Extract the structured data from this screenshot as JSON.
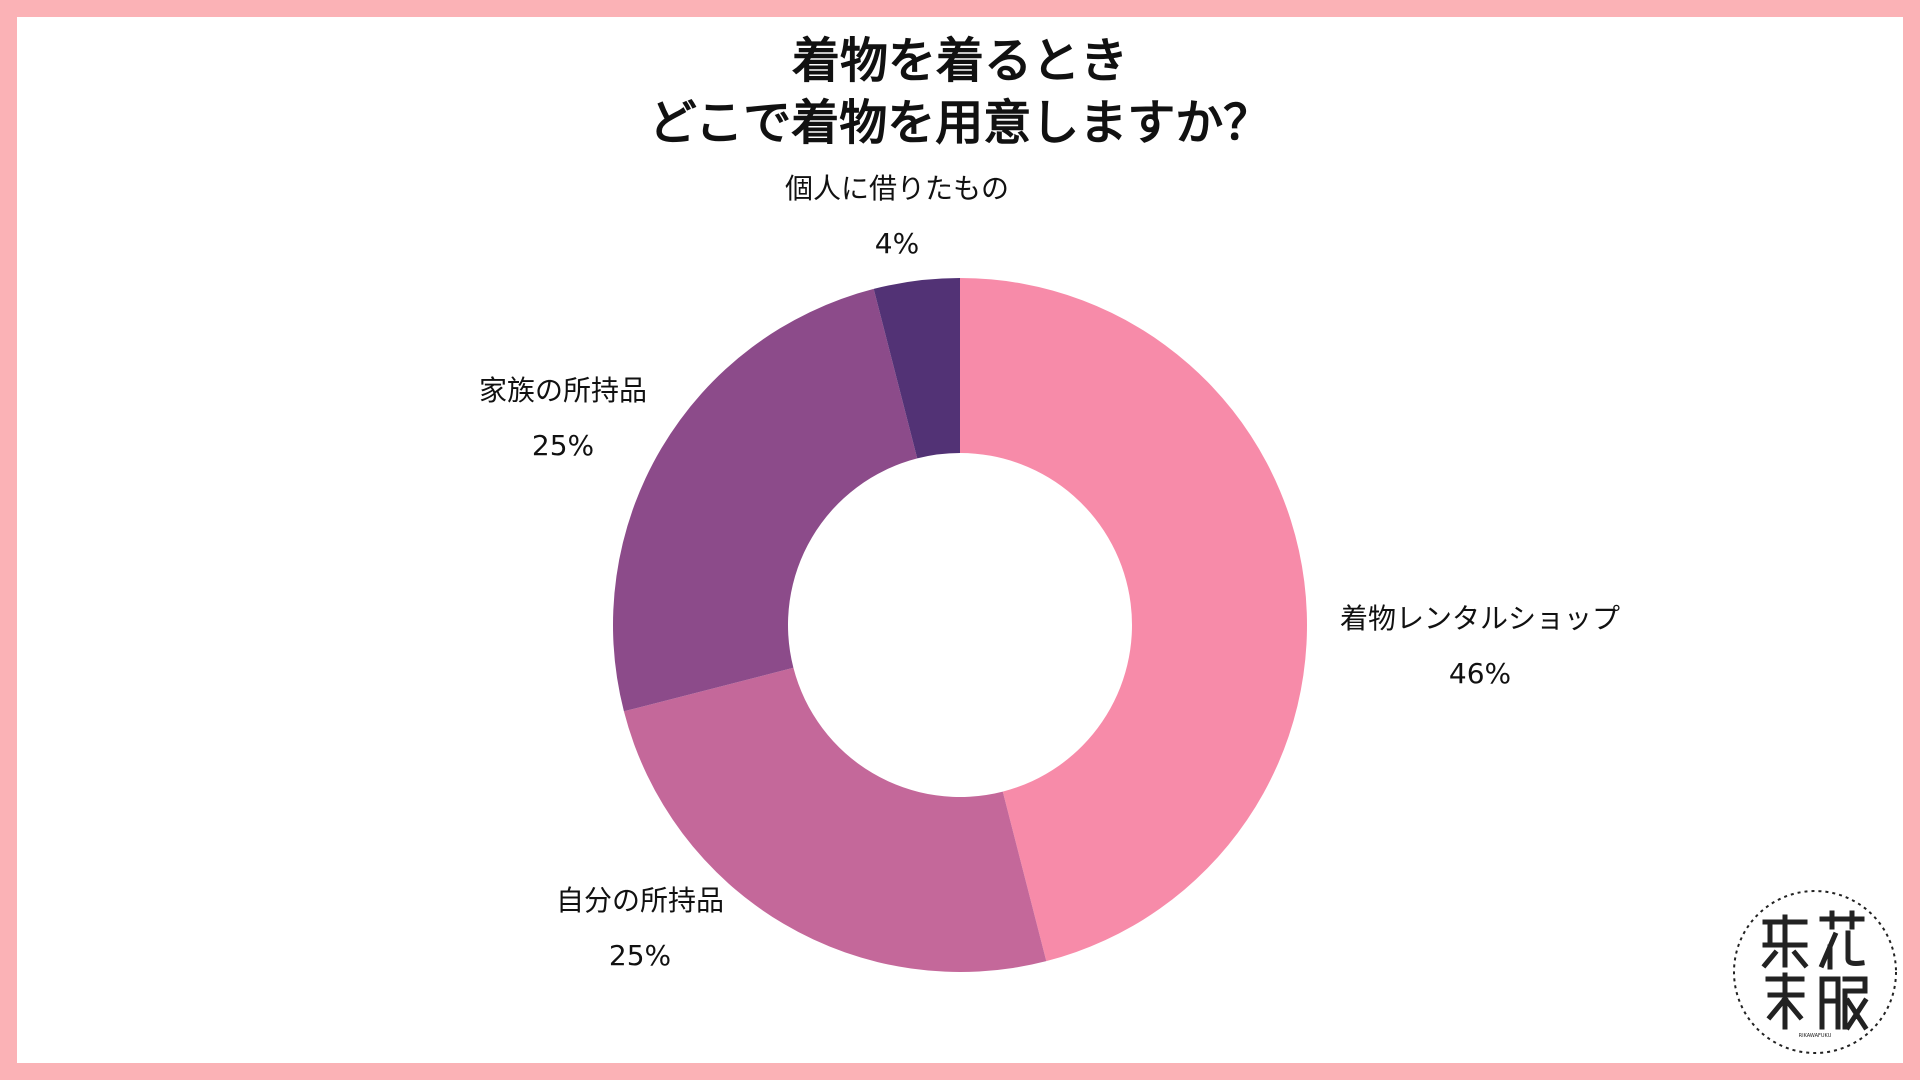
{
  "chart_data": {
    "type": "pie",
    "title_lines": [
      "着物を着るとき",
      "どこで着物を用意しますか？"
    ],
    "slices": [
      {
        "label": "着物レンタルショップ",
        "value": 46,
        "display": "46%",
        "color": "#f78ba9"
      },
      {
        "label": "自分の所持品",
        "value": 25,
        "display": "25%",
        "color": "#c4689a"
      },
      {
        "label": "家族の所持品",
        "value": 25,
        "display": "25%",
        "color": "#8c4b8a"
      },
      {
        "label": "個人に借りたもの",
        "value": 4,
        "display": "4%",
        "color": "#523275"
      }
    ]
  },
  "logo": {
    "name": "梨花和服"
  },
  "colors": {
    "border": "#fbb2b6",
    "background": "#ffffff"
  }
}
